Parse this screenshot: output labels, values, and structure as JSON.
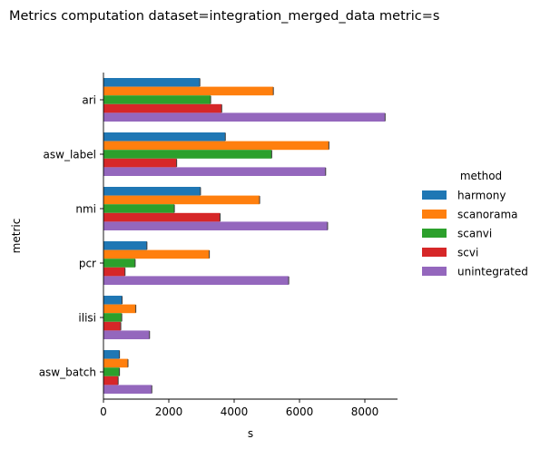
{
  "chart_data": {
    "type": "bar",
    "orientation": "horizontal",
    "title": "Metrics computation dataset=integration_merged_data metric=s",
    "xlabel": "s",
    "ylabel": "metric",
    "xlim": [
      0,
      9000
    ],
    "xticks": [
      "0",
      "2000",
      "4000",
      "6000",
      "8000"
    ],
    "categories": [
      "ari",
      "asw_label",
      "nmi",
      "pcr",
      "ilisi",
      "asw_batch"
    ],
    "legend": {
      "title": "method",
      "placement": "right"
    },
    "grid": false,
    "series": [
      {
        "name": "harmony",
        "color": "#1f77b4",
        "values": [
          2950,
          3730,
          2970,
          1330,
          570,
          490
        ]
      },
      {
        "name": "scanorama",
        "color": "#ff7f0e",
        "values": [
          5200,
          6900,
          4780,
          3240,
          990,
          750
        ]
      },
      {
        "name": "scanvi",
        "color": "#2ca02c",
        "values": [
          3280,
          5150,
          2170,
          970,
          560,
          490
        ]
      },
      {
        "name": "scvi",
        "color": "#d62728",
        "values": [
          3620,
          2240,
          3570,
          660,
          530,
          450
        ]
      },
      {
        "name": "unintegrated",
        "color": "#9467bd",
        "values": [
          8620,
          6800,
          6860,
          5670,
          1410,
          1480
        ]
      }
    ]
  }
}
